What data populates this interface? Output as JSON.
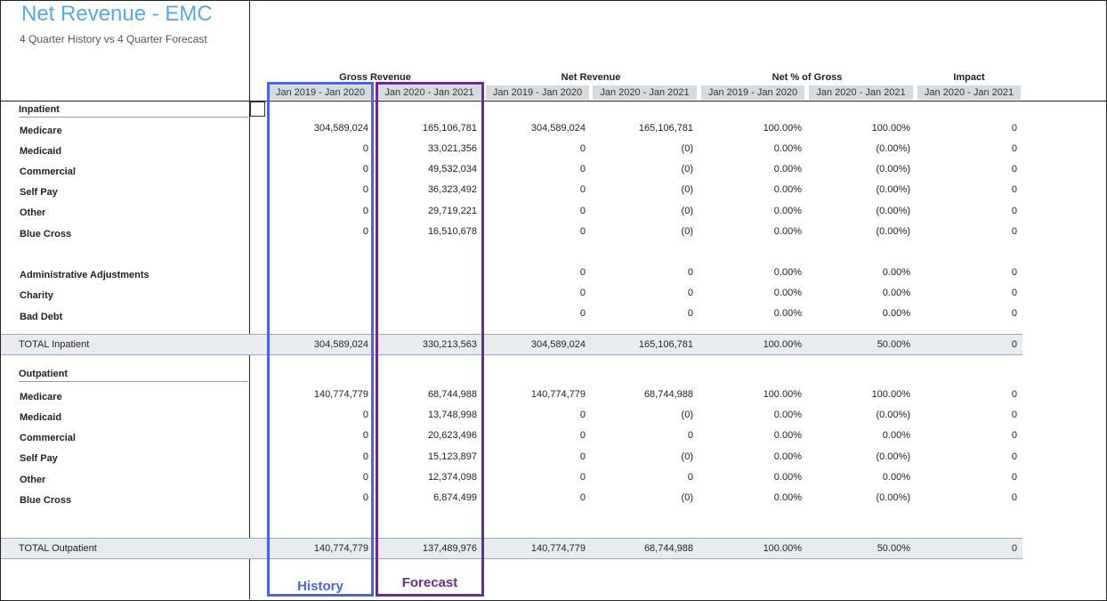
{
  "report": {
    "title": "Net Revenue - EMC",
    "subtitle": "4 Quarter History vs 4 Quarter Forecast"
  },
  "column_groups": [
    "Gross Revenue",
    "Net Revenue",
    "Net % of Gross",
    "Impact"
  ],
  "column_headers": [
    "Jan 2019 - Jan 2020",
    "Jan 2020 - Jan 2021",
    "Jan 2019 - Jan 2020",
    "Jan 2020 - Jan 2021",
    "Jan 2019 - Jan 2020",
    "Jan 2020 - Jan 2021",
    "Jan 2020 - Jan 2021"
  ],
  "inpatient": {
    "section_label": "Inpatient",
    "rows": [
      {
        "label": "Medicare",
        "values": [
          "304,589,024",
          "165,106,781",
          "304,589,024",
          "165,106,781",
          "100.00%",
          "100.00%",
          "0"
        ]
      },
      {
        "label": "Medicaid",
        "values": [
          "0",
          "33,021,356",
          "0",
          "(0)",
          "0.00%",
          "(0.00%)",
          "0"
        ]
      },
      {
        "label": "Commercial",
        "values": [
          "0",
          "49,532,034",
          "0",
          "(0)",
          "0.00%",
          "(0.00%)",
          "0"
        ]
      },
      {
        "label": "Self Pay",
        "values": [
          "0",
          "36,323,492",
          "0",
          "(0)",
          "0.00%",
          "(0.00%)",
          "0"
        ]
      },
      {
        "label": "Other",
        "values": [
          "0",
          "29,719,221",
          "0",
          "(0)",
          "0.00%",
          "(0.00%)",
          "0"
        ]
      },
      {
        "label": "Blue Cross",
        "values": [
          "0",
          "16,510,678",
          "0",
          "(0)",
          "0.00%",
          "(0.00%)",
          "0"
        ]
      },
      {
        "label": "Administrative Adjustments",
        "values": [
          "",
          "",
          "0",
          "0",
          "0.00%",
          "0.00%",
          "0"
        ]
      },
      {
        "label": "Charity",
        "values": [
          "",
          "",
          "0",
          "0",
          "0.00%",
          "0.00%",
          "0"
        ]
      },
      {
        "label": "Bad Debt",
        "values": [
          "",
          "",
          "0",
          "0",
          "0.00%",
          "0.00%",
          "0"
        ]
      }
    ],
    "total": {
      "label": "TOTAL Inpatient",
      "values": [
        "304,589,024",
        "330,213,563",
        "304,589,024",
        "165,106,781",
        "100.00%",
        "50.00%",
        "0"
      ]
    }
  },
  "outpatient": {
    "section_label": "Outpatient",
    "rows": [
      {
        "label": "Medicare",
        "values": [
          "140,774,779",
          "68,744,988",
          "140,774,779",
          "68,744,988",
          "100.00%",
          "100.00%",
          "0"
        ]
      },
      {
        "label": "Medicaid",
        "values": [
          "0",
          "13,748,998",
          "0",
          "(0)",
          "0.00%",
          "(0.00%)",
          "0"
        ]
      },
      {
        "label": "Commercial",
        "values": [
          "0",
          "20,623,496",
          "0",
          "0",
          "0.00%",
          "0.00%",
          "0"
        ]
      },
      {
        "label": "Self Pay",
        "values": [
          "0",
          "15,123,897",
          "0",
          "(0)",
          "0.00%",
          "(0.00%)",
          "0"
        ]
      },
      {
        "label": "Other",
        "values": [
          "0",
          "12,374,098",
          "0",
          "0",
          "0.00%",
          "0.00%",
          "0"
        ]
      },
      {
        "label": "Blue Cross",
        "values": [
          "0",
          "6,874,499",
          "0",
          "(0)",
          "0.00%",
          "(0.00%)",
          "0"
        ]
      }
    ],
    "total": {
      "label": "TOTAL Outpatient",
      "values": [
        "140,774,779",
        "137,489,976",
        "140,774,779",
        "68,744,988",
        "100.00%",
        "50.00%",
        "0"
      ]
    }
  },
  "annotations": {
    "history_label": "History",
    "forecast_label": "Forecast",
    "history_color": "#4a63e3",
    "forecast_color": "#6b2a8f"
  }
}
